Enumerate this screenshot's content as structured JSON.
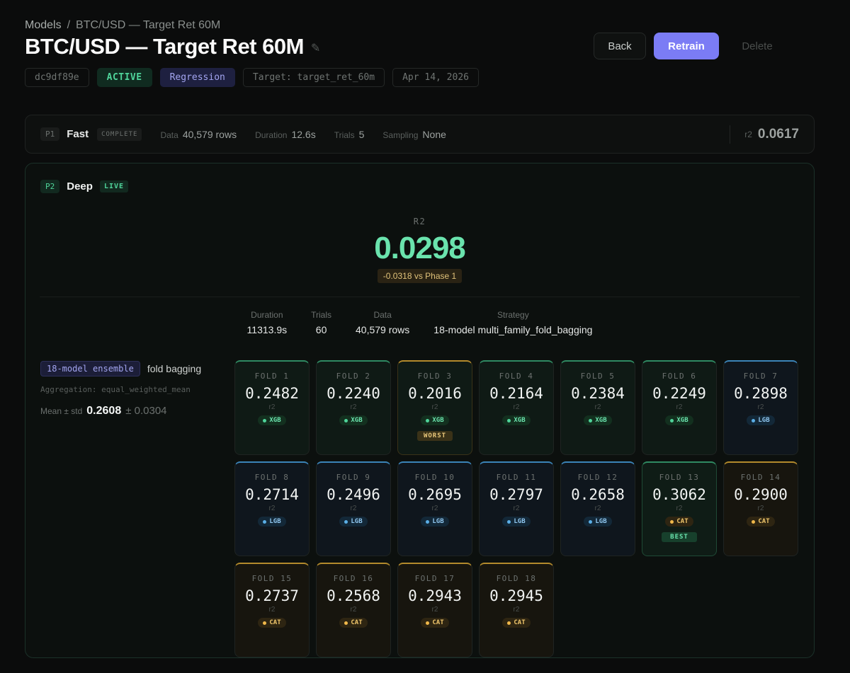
{
  "breadcrumb": {
    "root": "Models",
    "sep": "/",
    "current": "BTC/USD — Target Ret 60M"
  },
  "title": "BTC/USD — Target Ret 60M",
  "actions": {
    "back": "Back",
    "retrain": "Retrain",
    "delete": "Delete"
  },
  "tags": {
    "id": "dc9df89e",
    "status": "ACTIVE",
    "type": "Regression",
    "target": "Target: target_ret_60m",
    "date": "Apr 14, 2026"
  },
  "p1": {
    "phase": "P1",
    "name": "Fast",
    "state": "COMPLETE",
    "data_k": "Data",
    "data_v": "40,579 rows",
    "duration_k": "Duration",
    "duration_v": "12.6s",
    "trials_k": "Trials",
    "trials_v": "5",
    "sampling_k": "Sampling",
    "sampling_v": "None",
    "metric_k": "r2",
    "metric_v": "0.0617"
  },
  "p2": {
    "phase": "P2",
    "name": "Deep",
    "state": "LIVE",
    "hero_label": "R2",
    "hero_value": "0.0298",
    "delta": "-0.0318 vs Phase 1",
    "stats": {
      "duration_k": "Duration",
      "duration_v": "11313.9s",
      "trials_k": "Trials",
      "trials_v": "60",
      "data_k": "Data",
      "data_v": "40,579 rows",
      "strategy_k": "Strategy",
      "strategy_v": "18-model multi_family_fold_bagging"
    },
    "ensemble": {
      "pill": "18-model ensemble",
      "kind": "fold bagging",
      "aggregation": "Aggregation: equal_weighted_mean",
      "mean_k": "Mean ± std",
      "mean_v": "0.2608",
      "std_v": "± 0.0304"
    },
    "folds": [
      {
        "label": "FOLD 1",
        "value": "0.2482",
        "metric": "r2",
        "family": "XGB",
        "kind": "xgb",
        "flag": ""
      },
      {
        "label": "FOLD 2",
        "value": "0.2240",
        "metric": "r2",
        "family": "XGB",
        "kind": "xgb",
        "flag": ""
      },
      {
        "label": "FOLD 3",
        "value": "0.2016",
        "metric": "r2",
        "family": "XGB",
        "kind": "xgb",
        "flag": "WORST"
      },
      {
        "label": "FOLD 4",
        "value": "0.2164",
        "metric": "r2",
        "family": "XGB",
        "kind": "xgb",
        "flag": ""
      },
      {
        "label": "FOLD 5",
        "value": "0.2384",
        "metric": "r2",
        "family": "XGB",
        "kind": "xgb",
        "flag": ""
      },
      {
        "label": "FOLD 6",
        "value": "0.2249",
        "metric": "r2",
        "family": "XGB",
        "kind": "xgb",
        "flag": ""
      },
      {
        "label": "FOLD 7",
        "value": "0.2898",
        "metric": "r2",
        "family": "LGB",
        "kind": "lgb",
        "flag": ""
      },
      {
        "label": "FOLD 8",
        "value": "0.2714",
        "metric": "r2",
        "family": "LGB",
        "kind": "lgb",
        "flag": ""
      },
      {
        "label": "FOLD 9",
        "value": "0.2496",
        "metric": "r2",
        "family": "LGB",
        "kind": "lgb",
        "flag": ""
      },
      {
        "label": "FOLD 10",
        "value": "0.2695",
        "metric": "r2",
        "family": "LGB",
        "kind": "lgb",
        "flag": ""
      },
      {
        "label": "FOLD 11",
        "value": "0.2797",
        "metric": "r2",
        "family": "LGB",
        "kind": "lgb",
        "flag": ""
      },
      {
        "label": "FOLD 12",
        "value": "0.2658",
        "metric": "r2",
        "family": "LGB",
        "kind": "lgb",
        "flag": ""
      },
      {
        "label": "FOLD 13",
        "value": "0.3062",
        "metric": "r2",
        "family": "CAT",
        "kind": "cat",
        "flag": "BEST"
      },
      {
        "label": "FOLD 14",
        "value": "0.2900",
        "metric": "r2",
        "family": "CAT",
        "kind": "cat",
        "flag": ""
      },
      {
        "label": "FOLD 15",
        "value": "0.2737",
        "metric": "r2",
        "family": "CAT",
        "kind": "cat",
        "flag": ""
      },
      {
        "label": "FOLD 16",
        "value": "0.2568",
        "metric": "r2",
        "family": "CAT",
        "kind": "cat",
        "flag": ""
      },
      {
        "label": "FOLD 17",
        "value": "0.2943",
        "metric": "r2",
        "family": "CAT",
        "kind": "cat",
        "flag": ""
      },
      {
        "label": "FOLD 18",
        "value": "0.2945",
        "metric": "r2",
        "family": "CAT",
        "kind": "cat",
        "flag": ""
      }
    ]
  },
  "colors": {
    "accent": "#7b7cf5",
    "positive": "#6ae3ad",
    "xgb": "#4fd49a",
    "lgb": "#5aaee6",
    "cat": "#f0b84a"
  }
}
